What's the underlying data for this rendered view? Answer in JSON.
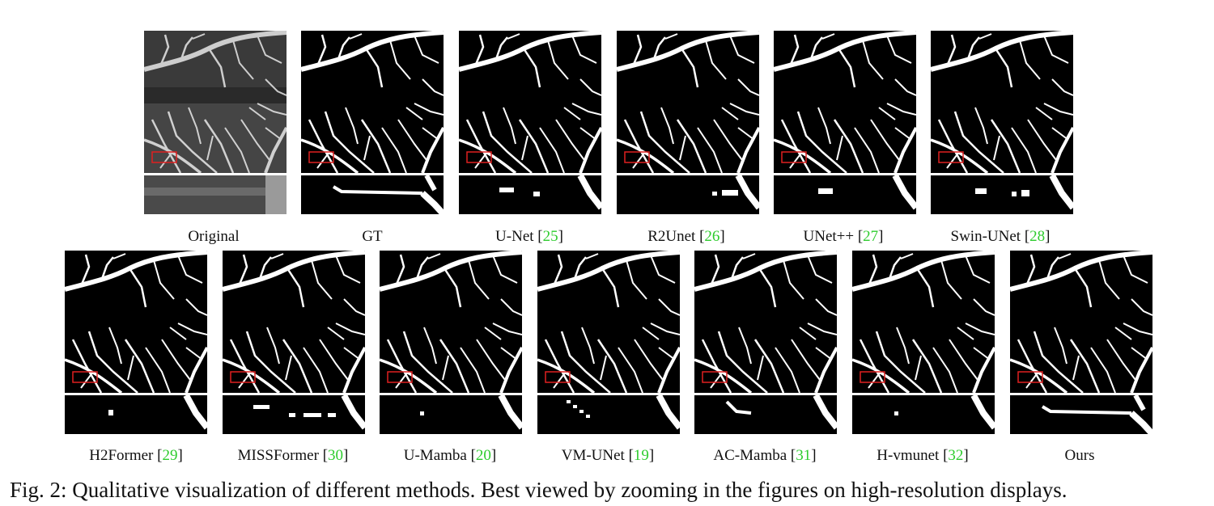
{
  "figure": {
    "caption": "Fig. 2: Qualitative visualization of different methods. Best viewed by zooming in the figures on high-resolution displays.",
    "top_row": [
      {
        "name": "Original",
        "ref": ""
      },
      {
        "name": "GT",
        "ref": ""
      },
      {
        "name": "U-Net",
        "ref": "25"
      },
      {
        "name": "R2Unet",
        "ref": "26"
      },
      {
        "name": "UNet++",
        "ref": "27"
      },
      {
        "name": "Swin-UNet",
        "ref": "28"
      }
    ],
    "bottom_row": [
      {
        "name": "H2Former",
        "ref": "29"
      },
      {
        "name": "MISSFormer",
        "ref": "30"
      },
      {
        "name": "U-Mamba",
        "ref": "20"
      },
      {
        "name": "VM-UNet",
        "ref": "19"
      },
      {
        "name": "AC-Mamba",
        "ref": "31"
      },
      {
        "name": "H-vmunet",
        "ref": "32"
      },
      {
        "name": "Ours",
        "ref": ""
      }
    ],
    "colors": {
      "vessel": "#ffffff",
      "background": "#000000",
      "highlight_box": "#e02020",
      "ref_link": "#2ecc2e"
    }
  }
}
